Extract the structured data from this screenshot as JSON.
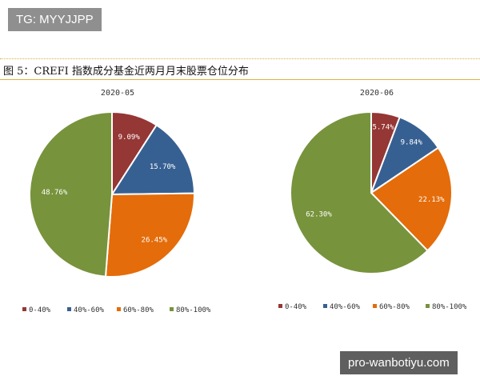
{
  "badge": {
    "text": "TG: MYYJJPP"
  },
  "figure": {
    "caption": "图 5：CREFI 指数成分基金近两月月末股票仓位分布"
  },
  "watermark": {
    "text": "pro-wanbotiyu.com"
  },
  "colors": {
    "0-40%": "#953735",
    "40%-60%": "#376092",
    "60%-80%": "#e46c0a",
    "80%-100%": "#77933c"
  },
  "chart_data": [
    {
      "type": "pie",
      "title": "2020-05",
      "categories": [
        "0-40%",
        "40%-60%",
        "60%-80%",
        "80%-100%"
      ],
      "values": [
        9.09,
        15.7,
        26.45,
        48.76
      ],
      "labels": [
        "9.09%",
        "15.70%",
        "26.45%",
        "48.76%"
      ],
      "legend": [
        "0-40%",
        "40%-60%",
        "60%-80%",
        "80%-100%"
      ],
      "legend_position": "bottom"
    },
    {
      "type": "pie",
      "title": "2020-06",
      "categories": [
        "0-40%",
        "40%-60%",
        "60%-80%",
        "80%-100%"
      ],
      "values": [
        5.74,
        9.84,
        22.13,
        62.3
      ],
      "labels": [
        "5.74%",
        "9.84%",
        "22.13%",
        "62.30%"
      ],
      "legend": [
        "0-40%",
        "40%-60%",
        "60%-80%",
        "80%-100%"
      ],
      "legend_position": "bottom"
    }
  ]
}
